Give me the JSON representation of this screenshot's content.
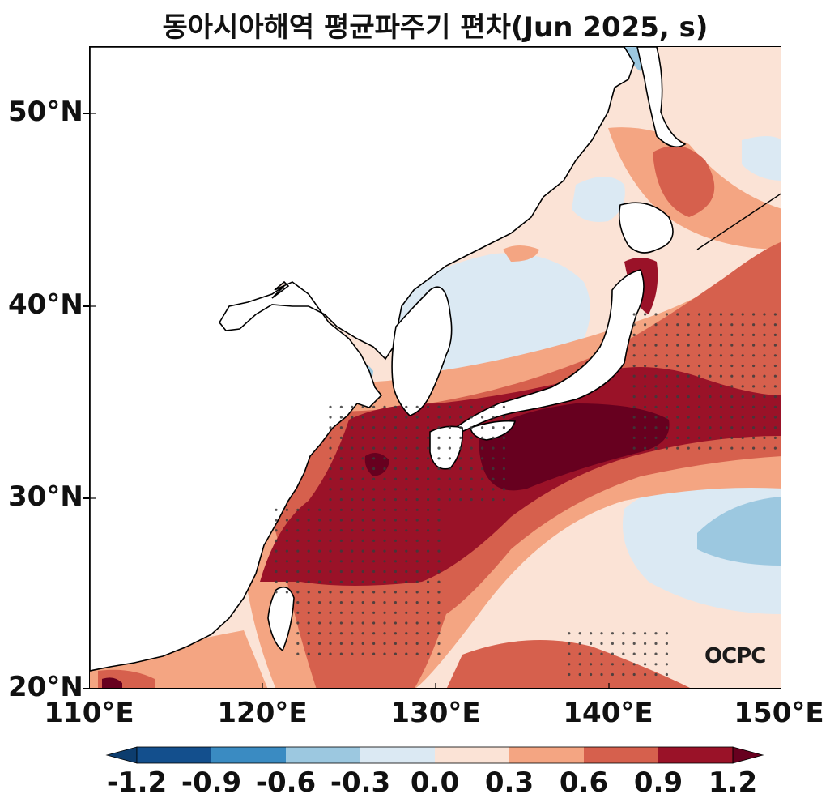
{
  "title": "동아시아해역 평균파주기 편차(Jun 2025, s)",
  "map": {
    "lat_ticks": [
      "50°N",
      "40°N",
      "30°N",
      "20°N"
    ],
    "lon_ticks": [
      "110°E",
      "120°E",
      "130°E",
      "140°E",
      "150°E"
    ],
    "extent": {
      "lon": [
        110,
        150
      ],
      "lat": [
        20,
        53.3
      ]
    },
    "logo_text": "OCPC"
  },
  "colorbar": {
    "tick_labels": [
      "-1.2",
      "-0.9",
      "-0.6",
      "-0.3",
      "0.0",
      "0.3",
      "0.6",
      "0.9",
      "1.2"
    ],
    "colors": [
      "#0d3d6e",
      "#134f8d",
      "#3a8bc2",
      "#9cc8e0",
      "#dbe9f3",
      "#fbe3d6",
      "#f4a582",
      "#d6604d",
      "#9a1228",
      "#67001f"
    ]
  },
  "colors": {
    "land": "#ffffff",
    "coast": "#000000",
    "stipple": "#3b3b3b"
  }
}
